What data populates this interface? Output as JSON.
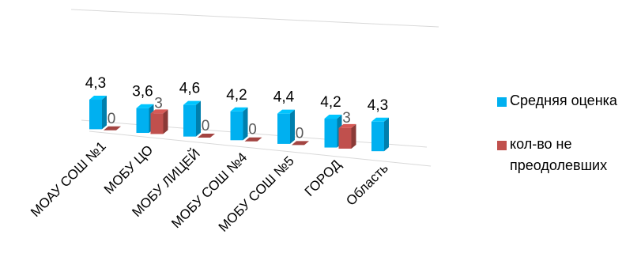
{
  "chart_data": {
    "type": "bar",
    "categories": [
      "МОАУ СОШ №1",
      "МОБУ ЦО",
      "МОБУ ЛИЦЕЙ",
      "МОБУ СОШ №4",
      "МОБУ СОШ №5",
      "ГОРОД",
      "Область"
    ],
    "series": [
      {
        "name": "Средняя оценка",
        "values": [
          4.3,
          3.6,
          4.6,
          4.2,
          4.4,
          4.2,
          4.3
        ],
        "labels": [
          "4,3",
          "3,6",
          "4,6",
          "4,2",
          "4,4",
          "4,2",
          "4,3"
        ],
        "color": "#00B0F0"
      },
      {
        "name": "кол-во не преодолевших",
        "values": [
          0,
          3,
          0,
          0,
          0,
          3,
          null
        ],
        "labels": [
          "0",
          "3",
          "0",
          "0",
          "0",
          "3",
          ""
        ],
        "color": "#C0504D"
      }
    ],
    "legend_position": "right",
    "grid": true,
    "three_d": true
  }
}
